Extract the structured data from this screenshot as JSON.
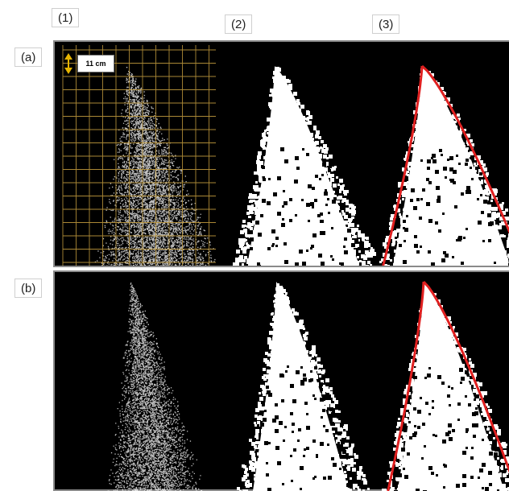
{
  "columns": [
    "(1)",
    "(2)",
    "(3)"
  ],
  "rows": [
    "(a)",
    "(b)"
  ],
  "scale": {
    "label": "11 cm"
  },
  "colors": {
    "background": "#000000",
    "particles": "#ffffff",
    "grid": "#c8a040",
    "fit_curve": "#e02020",
    "scale_arrow": "#e6b400"
  },
  "icons": [
    "double-arrow-icon"
  ]
}
